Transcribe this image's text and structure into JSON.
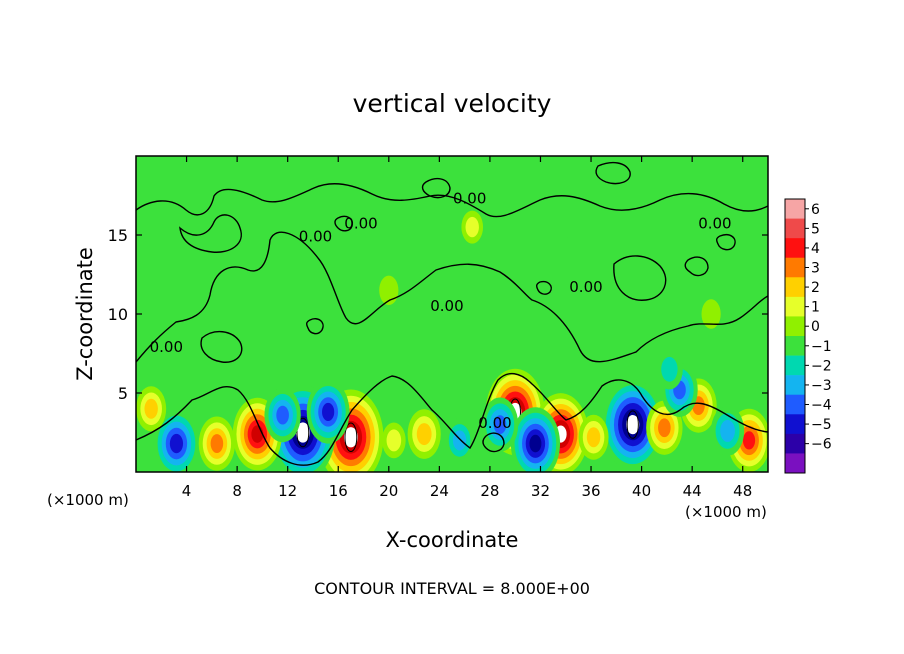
{
  "chart_data": {
    "type": "heatmap",
    "title": "vertical velocity",
    "xlabel": "X-coordinate",
    "ylabel": "Z-coordinate",
    "x_unit": "(×1000 m)",
    "x_unit_right": "(×1000 m)",
    "xlim": [
      0,
      50
    ],
    "ylim": [
      0,
      20
    ],
    "x_ticks": [
      4,
      8,
      12,
      16,
      20,
      24,
      28,
      32,
      36,
      40,
      44,
      48
    ],
    "y_ticks": [
      5,
      10,
      15
    ],
    "contour_label": "0.00",
    "contour_labels": [
      {
        "x": 2.4,
        "z": 7.6,
        "text": "0.00"
      },
      {
        "x": 14.2,
        "z": 14.6,
        "text": "0.00"
      },
      {
        "x": 17.8,
        "z": 15.4,
        "text": "0.00"
      },
      {
        "x": 26.4,
        "z": 17.0,
        "text": "0.00"
      },
      {
        "x": 24.6,
        "z": 10.2,
        "text": "0.00"
      },
      {
        "x": 35.6,
        "z": 11.4,
        "text": "0.00"
      },
      {
        "x": 45.8,
        "z": 15.4,
        "text": "0.00"
      },
      {
        "x": 28.4,
        "z": 2.8,
        "text": "0.00"
      }
    ],
    "colorbar": {
      "ticks": [
        "6",
        "5",
        "4",
        "3",
        "2",
        "1",
        "0",
        "−1",
        "−2",
        "−3",
        "−4",
        "−5",
        "−6"
      ],
      "colors": [
        "#f6a5a5",
        "#ef4a4a",
        "#ff1010",
        "#ff7a00",
        "#ffd000",
        "#e6ff2a",
        "#90f000",
        "#3ce13c",
        "#00d8b0",
        "#14b4f0",
        "#1f5cff",
        "#1010d0",
        "#2c00a8",
        "#7a10c0"
      ]
    },
    "features": [
      {
        "x": 17.0,
        "z": 2.2,
        "value": 8.0
      },
      {
        "x": 13.2,
        "z": 2.5,
        "value": -8.0
      },
      {
        "x": 30.0,
        "z": 3.8,
        "value": 7.0
      },
      {
        "x": 33.6,
        "z": 2.4,
        "value": 6.5
      },
      {
        "x": 39.3,
        "z": 3.0,
        "value": -7.5
      },
      {
        "x": 9.6,
        "z": 2.4,
        "value": 5.5
      },
      {
        "x": 3.2,
        "z": 1.8,
        "value": -5.0
      },
      {
        "x": 48.5,
        "z": 2.0,
        "value": 4.5
      },
      {
        "x": 31.6,
        "z": 1.8,
        "value": -5.5
      },
      {
        "x": 44.5,
        "z": 4.2,
        "value": 3.5
      },
      {
        "x": 41.8,
        "z": 2.8,
        "value": 3.5
      },
      {
        "x": 6.4,
        "z": 1.8,
        "value": 3.5
      },
      {
        "x": 11.6,
        "z": 3.6,
        "value": -3.5
      },
      {
        "x": 15.2,
        "z": 3.8,
        "value": -4.5
      },
      {
        "x": 28.8,
        "z": 3.0,
        "value": -3.5
      },
      {
        "x": 36.2,
        "z": 2.2,
        "value": 2.5
      },
      {
        "x": 22.8,
        "z": 2.4,
        "value": 3.0
      },
      {
        "x": 25.6,
        "z": 2.0,
        "value": -2.5
      },
      {
        "x": 43.0,
        "z": 5.2,
        "value": -3.5
      },
      {
        "x": 1.2,
        "z": 4.0,
        "value": 2.5
      },
      {
        "x": 46.8,
        "z": 2.6,
        "value": -3.0
      },
      {
        "x": 20.4,
        "z": 2.0,
        "value": 1.5
      },
      {
        "x": 42.2,
        "z": 6.5,
        "value": -2.0
      },
      {
        "x": 26.6,
        "z": 15.5,
        "value": 1.2
      },
      {
        "x": 20.0,
        "z": 11.5,
        "value": 0.8
      },
      {
        "x": 45.5,
        "z": 10.0,
        "value": 0.8
      },
      {
        "x": 8.0,
        "z": 13.0,
        "value": -0.6
      },
      {
        "x": 34.0,
        "z": 14.0,
        "value": -0.5
      }
    ]
  },
  "footer": {
    "contour_interval": "CONTOUR INTERVAL = 8.000E+00"
  }
}
